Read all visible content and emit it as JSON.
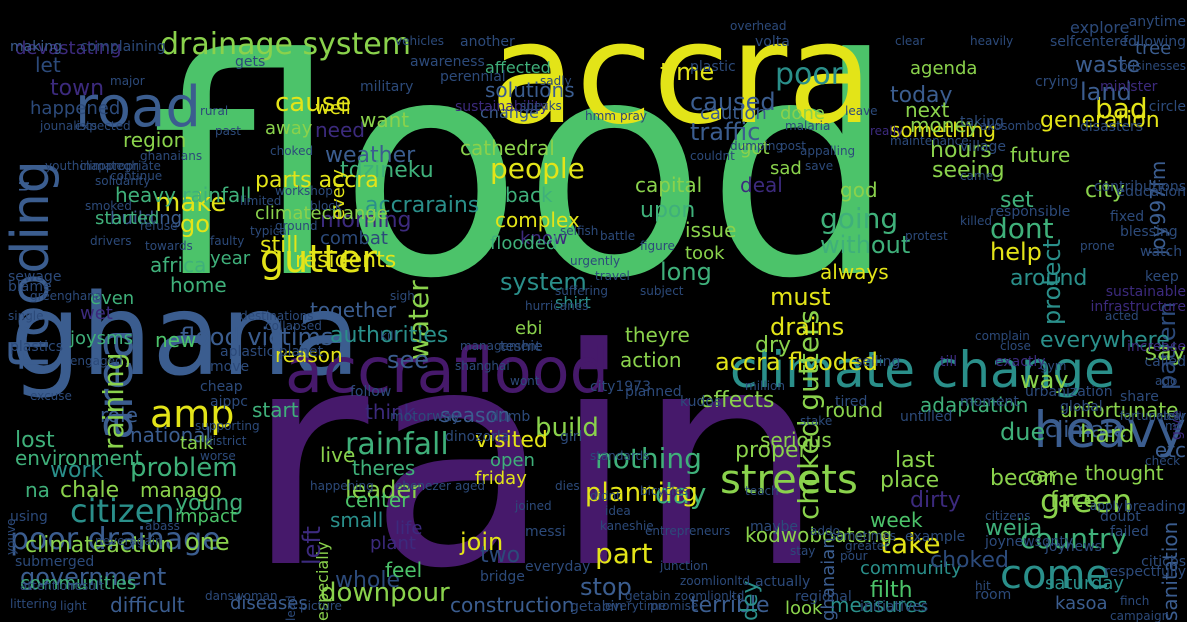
{
  "title": "",
  "palette": {
    "background": "#000000",
    "green": "#4cc36a",
    "yellow": "#e3e418",
    "purple": "#46196b",
    "blue": "#3b5d8f",
    "teal": "#2a8f8a",
    "light_green": "#8ad24c",
    "dark_blue": "#2c4a7a",
    "mid_green": "#3fb07a",
    "indigo": "#3c2a7d"
  },
  "words": [
    "flood",
    "accra",
    "rain",
    "ghana",
    "accraflood",
    "climate change",
    "flooding",
    "road",
    "area",
    "drainage system",
    "amp",
    "heavy",
    "come",
    "gutter",
    "rainfall",
    "citizen",
    "poor drainage",
    "government",
    "accra flooded",
    "flood victims",
    "problem",
    "people",
    "country",
    "green",
    "choked gutters",
    "cause",
    "caused",
    "poor",
    "bad",
    "time",
    "today",
    "traffic",
    "land",
    "waste",
    "make",
    "go",
    "water",
    "weather",
    "tdzineku",
    "parts accra",
    "accrarains",
    "morning",
    "going",
    "dont",
    "help",
    "pattern",
    "around",
    "without",
    "always",
    "residents",
    "combat",
    "still",
    "need",
    "cathedral",
    "authorities",
    "system",
    "know",
    "flooded",
    "long",
    "took",
    "must",
    "drains",
    "effects",
    "action",
    "day",
    "part",
    "build",
    "nothing",
    "planning",
    "take",
    "face",
    "weija",
    "become",
    "due",
    "climate",
    "sanitation",
    "downpour",
    "whole",
    "join",
    "two",
    "stop",
    "construction",
    "terrible",
    "measures",
    "filth",
    "community",
    "saturday",
    "kasoa",
    "choked",
    "work",
    "young",
    "one",
    "manago",
    "chale",
    "na",
    "lost",
    "role",
    "national",
    "start",
    "see",
    "reason",
    "together",
    "leader",
    "small",
    "especially",
    "theres",
    "live",
    "friday",
    "open",
    "season",
    "think",
    "say",
    "way",
    "everywhere",
    "place",
    "dirty",
    "last",
    "week",
    "car",
    "thought",
    "etc",
    "hard",
    "round",
    "adaptation",
    "unfortunate",
    "center",
    "feel",
    "life",
    "plant",
    "visited",
    "climateaction",
    "communities",
    "difficult",
    "diseases",
    "impact",
    "environment",
    "talk",
    "africa",
    "home",
    "raining",
    "heavy rainfall",
    "building",
    "region",
    "town",
    "let",
    "devastating",
    "happened",
    "started",
    "even",
    "joysms",
    "new",
    "wet",
    "complex",
    "back",
    "capital",
    "upon",
    "issue",
    "theyre",
    "shirt",
    "dry",
    "serious",
    "proper",
    "hours",
    "seeing",
    "deal",
    "god",
    "sad",
    "got",
    "something",
    "next",
    "money",
    "agenda",
    "done",
    "caution",
    "solutions",
    "affected",
    "change",
    "generation",
    "joy997fm",
    "set",
    "city",
    "protect",
    "future",
    "climatechange",
    "away",
    "well",
    "every",
    "want",
    "year",
    "ebi",
    "left",
    "dey",
    "kodwoboateng",
    "ghanaian",
    "look",
    "streets",
    "tree",
    "u",
    "making",
    "gets",
    "complaining",
    "awareness",
    "military",
    "perennial",
    "sustainability",
    "plastic",
    "volta",
    "explore",
    "following",
    "circle",
    "minister",
    "taking",
    "crying",
    "really",
    "leave",
    "malaria",
    "village",
    "disasters",
    "contributions",
    "education",
    "responsible",
    "fixed",
    "blessing",
    "watch",
    "keep",
    "sustainable",
    "infrastructure",
    "give",
    "increase",
    "called",
    "exactly",
    "till",
    "selling",
    "moment",
    "untilled",
    "urbanization",
    "global",
    "share",
    "citicbs",
    "respectfully",
    "breading",
    "doubt",
    "failed",
    "joynews",
    "joynewsonty",
    "example",
    "initiatives",
    "regional",
    "actually",
    "maybe",
    "room",
    "campaign",
    "getabin",
    "getabin zoomlionltd",
    "zoomlionltd",
    "junction",
    "bridge",
    "everyday",
    "messi",
    "entrepreneurs",
    "kaneshie",
    "idea",
    "joined",
    "didnt",
    "dies",
    "aged",
    "ebenezer",
    "happening",
    "aippc",
    "supporting",
    "district",
    "worse",
    "using",
    "neveragain",
    "abass",
    "attention",
    "light",
    "danswoman",
    "littering",
    "result",
    "lead",
    "picture",
    "promise",
    "everytime",
    "submerged",
    "sewage",
    "blame",
    "plastics",
    "greenghana",
    "single",
    "excuse",
    "aplastic planet",
    "motorway",
    "sigh",
    "kill",
    "management",
    "teshie",
    "shanghai",
    "city1973",
    "planned",
    "kudos",
    "cheap",
    "follow",
    "dumb",
    "dinozorla",
    "tired",
    "stake",
    "girl",
    "move",
    "standards",
    "bicycles",
    "teach",
    "pour",
    "stay",
    "addo",
    "sometimes",
    "greater",
    "hit",
    "citizens",
    "apply",
    "check",
    "mr",
    "ago",
    "selfcentered",
    "anytime",
    "businesses",
    "heavily",
    "clear",
    "overhead",
    "another",
    "vehicles",
    "expected",
    "jounalists",
    "major",
    "youthclimategh",
    "ghanaians",
    "inappropriate",
    "smoked",
    "rural",
    "past",
    "choked",
    "speaks",
    "sadly",
    "hmm",
    "pray",
    "couldnt",
    "dumping",
    "post",
    "appalling",
    "save",
    "came",
    "block",
    "ground",
    "workshop",
    "typical",
    "limited",
    "faulty",
    "towards",
    "refuse",
    "solidarity",
    "continue",
    "drivers",
    "youve",
    "close",
    "complain",
    "acted",
    "wont",
    "hurricanes",
    "suffering",
    "subject",
    "urgently",
    "travel",
    "battle",
    "figure",
    "selfish",
    "collapsed",
    "destinations",
    "engaged",
    "million",
    "protest",
    "killed",
    "prone",
    "akosombo",
    "maintenance",
    "fortunately",
    "clear",
    "finch",
    "gym",
    "neighbourhood",
    "unpredictable",
    "realized",
    "went",
    "little",
    "stop",
    "headlines",
    "empty",
    "much",
    "please",
    "tema",
    "experience",
    "survival",
    "greencity",
    "buy",
    "address",
    "cancel",
    "epicentric",
    "students",
    "immediately",
    "rest",
    "jamesagada",
    "used",
    "shameful",
    "efankoe",
    "fun",
    "sekof",
    "amending",
    "early",
    "private",
    "mama",
    "head",
    "control"
  ]
}
